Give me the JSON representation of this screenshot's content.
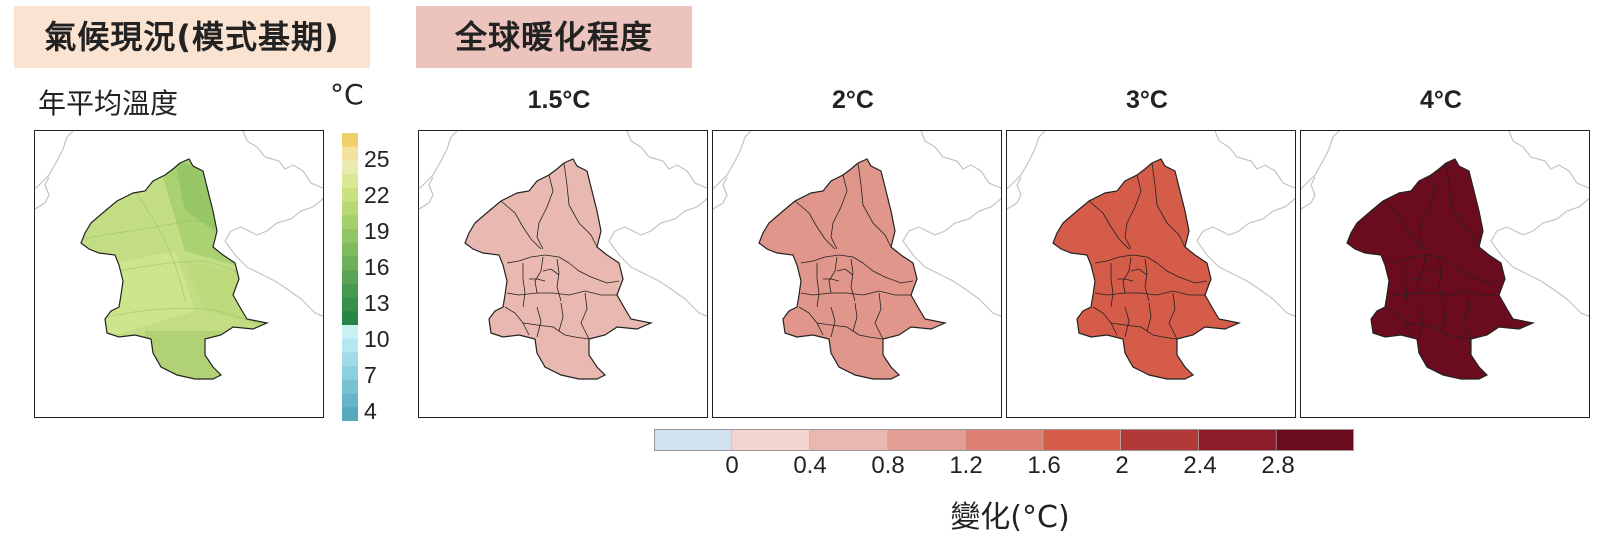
{
  "headers": {
    "baseline": "氣候現況(模式基期)",
    "warming": "全球暖化程度"
  },
  "baseline_panel": {
    "subtitle": "年平均溫度",
    "unit": "°C",
    "colorbar_ticks": [
      "25",
      "22",
      "19",
      "16",
      "13",
      "10",
      "7",
      "4"
    ],
    "colorbar_colors": [
      "#f1cf6a",
      "#f3e1a0",
      "#e8ecb0",
      "#d8e895",
      "#c9e27f",
      "#b6d875",
      "#a4cf6d",
      "#91c565",
      "#7fbb5e",
      "#6cb059",
      "#59a554",
      "#469a4f",
      "#35904a",
      "#258646",
      "#c9f0f5",
      "#b4e7f0",
      "#a0dbe7",
      "#8ccfdd",
      "#79c2d3",
      "#67b5c9",
      "#56a8bf"
    ],
    "map_fill_colors": [
      "#c3dd85",
      "#a9d06e",
      "#cfe48e",
      "#bcd97a",
      "#a3cc6b",
      "#8fc262"
    ]
  },
  "warming_panels": [
    {
      "label": "1.5°C",
      "fill": "#e9b8b1"
    },
    {
      "label": "2°C",
      "fill": "#e0968a"
    },
    {
      "label": "3°C",
      "fill": "#d45c49"
    },
    {
      "label": "4°C",
      "fill": "#6b0c1e"
    }
  ],
  "change_colorbar": {
    "ticks": [
      "0",
      "0.4",
      "0.8",
      "1.2",
      "1.6",
      "2",
      "2.4",
      "2.8"
    ],
    "colors": [
      "#d2e3ef",
      "#f2d5d1",
      "#e9b8b1",
      "#e39d94",
      "#dd8071",
      "#d45c49",
      "#b33838",
      "#8c1d28",
      "#6b0c1e"
    ],
    "title": "變化(°C)"
  }
}
